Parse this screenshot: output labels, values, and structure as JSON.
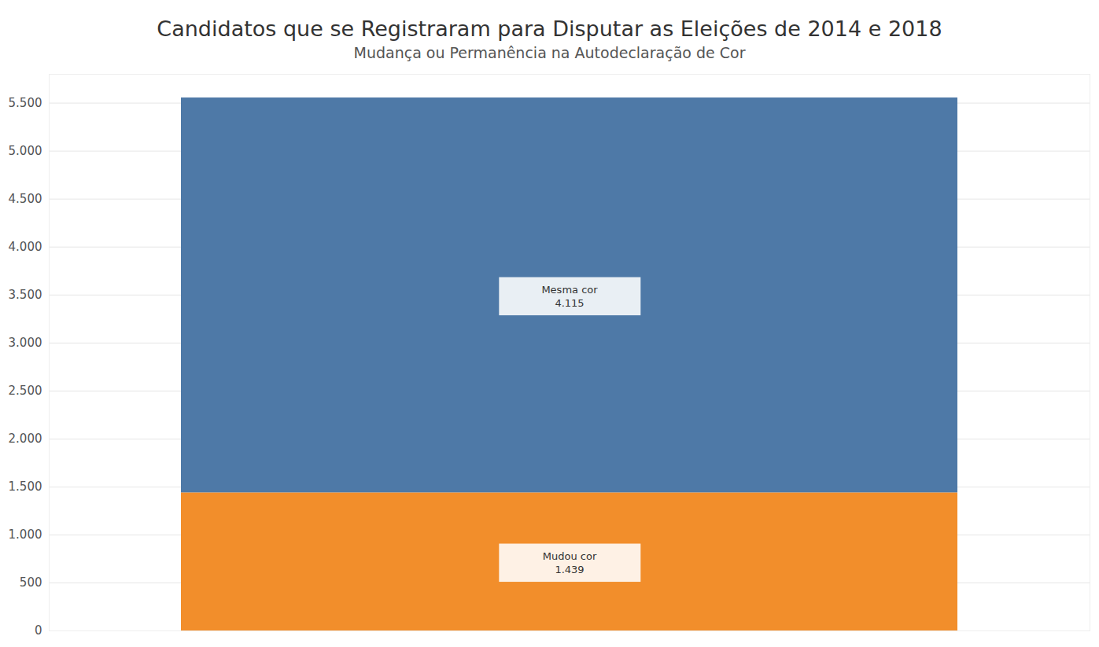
{
  "chart_data": {
    "type": "bar",
    "title": "Candidatos que se Registraram para Disputar as Eleições de 2014 e 2018",
    "subtitle": "Mudança ou Permanência na Autodeclaração de Cor",
    "categories": [
      null
    ],
    "series": [
      {
        "name": "Mudou cor",
        "color": "#f28e2b",
        "values": [
          1439
        ],
        "value_labels": [
          "1.439"
        ]
      },
      {
        "name": "Mesma cor",
        "color": "#4e79a7",
        "values": [
          4115
        ],
        "value_labels": [
          "4.115"
        ]
      }
    ],
    "stacked": true,
    "data_labels": true,
    "grid": true,
    "ylim": [
      0,
      5800
    ],
    "yticks": [
      0,
      500,
      {
        "value": 1000,
        "label": "1.000"
      },
      {
        "value": 1500,
        "label": "1.500"
      },
      {
        "value": 2000,
        "label": "2.000"
      },
      {
        "value": 2500,
        "label": "2.500"
      },
      {
        "value": 3000,
        "label": "3.000"
      },
      {
        "value": 3500,
        "label": "3.500"
      },
      {
        "value": 4000,
        "label": "4.000"
      },
      {
        "value": 4500,
        "label": "4.500"
      },
      {
        "value": 5000,
        "label": "5.000"
      },
      {
        "value": 5500,
        "label": "5.500"
      }
    ]
  }
}
